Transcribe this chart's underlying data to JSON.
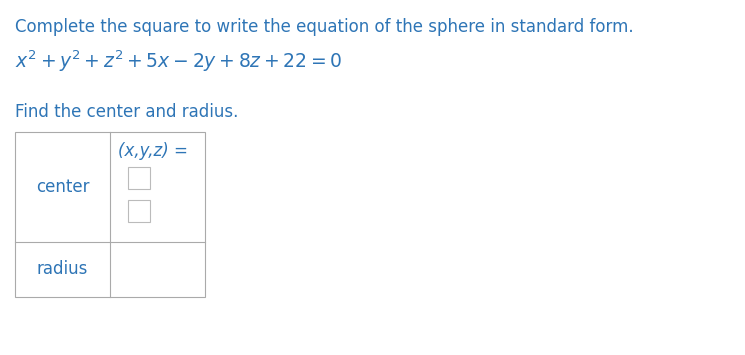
{
  "bg_color": "#ffffff",
  "instruction_text": "Complete the square to write the equation of the sphere in standard form.",
  "find_text": "Find the center and radius.",
  "center_label": "center",
  "radius_label": "radius",
  "xyz_label": "(x,y,z) =",
  "text_color": "#2E75B6",
  "box_color": "#cccccc",
  "instruction_fontsize": 12.0,
  "equation_fontsize": 13.5,
  "find_fontsize": 12.0,
  "table_fontsize": 12.0,
  "xyz_fontsize": 12.0
}
